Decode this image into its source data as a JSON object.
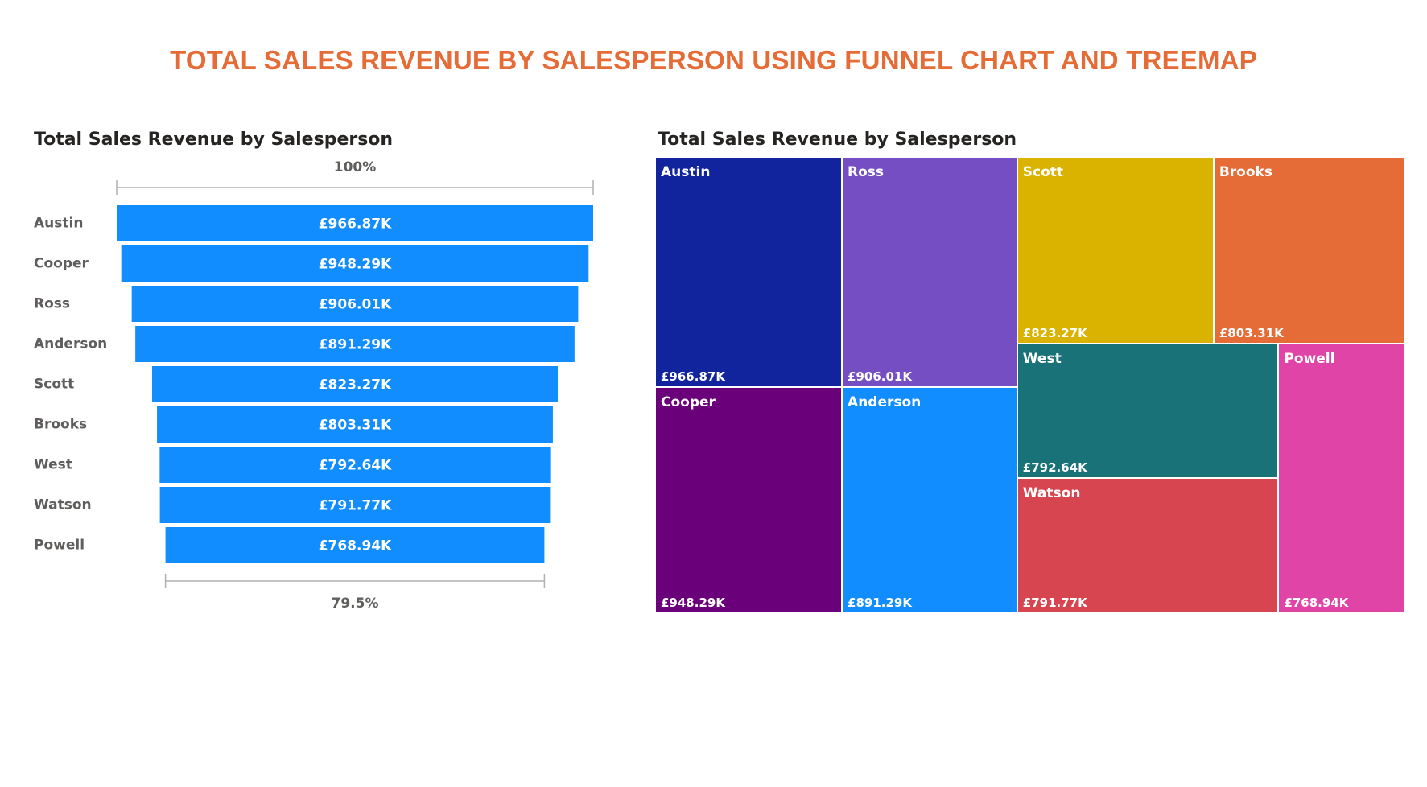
{
  "page": {
    "title": "TOTAL SALES REVENUE BY SALESPERSON USING FUNNEL CHART AND TREEMAP",
    "title_color": "#E66C37"
  },
  "chart_data": [
    {
      "type": "funnel",
      "title": "Total Sales Revenue by Salesperson",
      "categories": [
        "Austin",
        "Cooper",
        "Ross",
        "Anderson",
        "Scott",
        "Brooks",
        "West",
        "Watson",
        "Powell"
      ],
      "values": [
        966.87,
        948.29,
        906.01,
        891.29,
        823.27,
        803.31,
        792.64,
        791.77,
        768.94
      ],
      "data_labels": [
        "£966.87K",
        "£948.29K",
        "£906.01K",
        "£891.29K",
        "£823.27K",
        "£803.31K",
        "£792.64K",
        "£791.77K",
        "£768.94K"
      ],
      "top_percent_label": "100%",
      "bottom_percent_label": "79.5%",
      "bar_color": "#118DFF"
    },
    {
      "type": "treemap",
      "title": "Total Sales Revenue by Salesperson",
      "categories": [
        "Austin",
        "Cooper",
        "Ross",
        "Anderson",
        "Scott",
        "Brooks",
        "West",
        "Watson",
        "Powell"
      ],
      "values": [
        966.87,
        948.29,
        906.01,
        891.29,
        823.27,
        803.31,
        792.64,
        791.77,
        768.94
      ],
      "data_labels": [
        "£966.87K",
        "£948.29K",
        "£906.01K",
        "£891.29K",
        "£823.27K",
        "£803.31K",
        "£792.64K",
        "£791.77K",
        "£768.94K"
      ],
      "colors": [
        "#12239E",
        "#6B007B",
        "#744EC2",
        "#118DFF",
        "#D9B300",
        "#E66C37",
        "#197278",
        "#D64550",
        "#E044A7"
      ]
    }
  ]
}
